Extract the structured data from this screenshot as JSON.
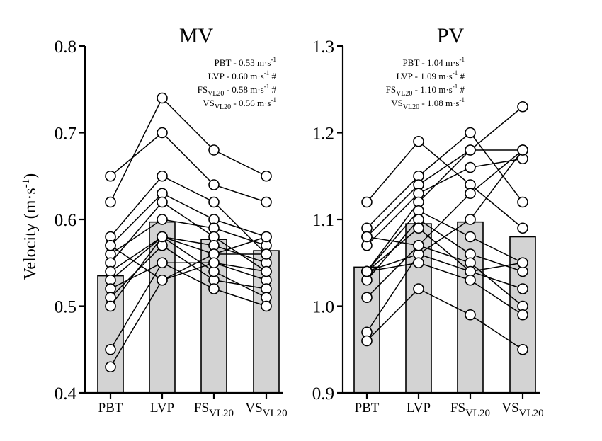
{
  "chart_data": [
    {
      "type": "bar",
      "title": "MV",
      "ylabel": "Velocity (m·s",
      "ylabel_sup": "-1",
      "ylabel_close": ")",
      "ylim": [
        0.4,
        0.8
      ],
      "yticks": [
        "0.4",
        "0.5",
        "0.6",
        "0.7",
        "0.8"
      ],
      "categories": [
        {
          "main": "PBT",
          "sub": ""
        },
        {
          "main": "LVP",
          "sub": ""
        },
        {
          "main": "FS",
          "sub": "VL20"
        },
        {
          "main": "VS",
          "sub": "VL20"
        }
      ],
      "means": [
        0.535,
        0.597,
        0.577,
        0.564
      ],
      "annotations": [
        {
          "main": "PBT",
          "sub": "",
          "text": " - 0.53 m·s",
          "sup": "-1",
          "mark": ""
        },
        {
          "main": "LVP",
          "sub": "",
          "text": " - 0.60 m·s",
          "sup": "-1",
          "mark": "#"
        },
        {
          "main": "FS",
          "sub": "VL20",
          "text": " - 0.58 m·s",
          "sup": "-1",
          "mark": "#"
        },
        {
          "main": "VS",
          "sub": "VL20",
          "text": " - 0.56 m·s",
          "sup": "-1",
          "mark": ""
        }
      ],
      "subjects": [
        [
          0.65,
          0.7,
          0.64,
          0.62
        ],
        [
          0.62,
          0.74,
          0.68,
          0.65
        ],
        [
          0.58,
          0.65,
          0.62,
          0.56
        ],
        [
          0.57,
          0.63,
          0.6,
          0.58
        ],
        [
          0.56,
          0.6,
          0.59,
          0.57
        ],
        [
          0.55,
          0.62,
          0.58,
          0.54
        ],
        [
          0.54,
          0.58,
          0.57,
          0.55
        ],
        [
          0.53,
          0.58,
          0.56,
          0.56
        ],
        [
          0.52,
          0.55,
          0.55,
          0.53
        ],
        [
          0.51,
          0.57,
          0.53,
          0.52
        ],
        [
          0.5,
          0.58,
          0.54,
          0.51
        ],
        [
          0.45,
          0.55,
          0.52,
          0.5
        ],
        [
          0.43,
          0.53,
          0.56,
          0.58
        ],
        [
          0.57,
          0.53,
          0.55,
          0.54
        ]
      ]
    },
    {
      "type": "bar",
      "title": "PV",
      "ylabel": "",
      "ylim": [
        0.9,
        1.3
      ],
      "yticks": [
        "0.9",
        "1.0",
        "1.1",
        "1.2",
        "1.3"
      ],
      "categories": [
        {
          "main": "PBT",
          "sub": ""
        },
        {
          "main": "LVP",
          "sub": ""
        },
        {
          "main": "FS",
          "sub": "VL20"
        },
        {
          "main": "VS",
          "sub": "VL20"
        }
      ],
      "means": [
        1.045,
        1.095,
        1.097,
        1.08
      ],
      "annotations": [
        {
          "main": "PBT",
          "sub": "",
          "text": " - 1.04 m·s",
          "sup": "-1",
          "mark": ""
        },
        {
          "main": "LVP",
          "sub": "",
          "text": " - 1.09 m·s",
          "sup": "-1",
          "mark": "#"
        },
        {
          "main": "FS",
          "sub": "VL20",
          "text": " - 1.10 m·s",
          "sup": "-1",
          "mark": "#"
        },
        {
          "main": "VS",
          "sub": "VL20",
          "text": " - 1.08 m·s",
          "sup": "-1",
          "mark": ""
        }
      ],
      "subjects": [
        [
          1.12,
          1.19,
          1.14,
          1.09
        ],
        [
          1.09,
          1.15,
          1.2,
          1.12
        ],
        [
          1.08,
          1.14,
          1.18,
          1.18
        ],
        [
          1.07,
          1.13,
          1.16,
          1.17
        ],
        [
          1.04,
          1.12,
          1.18,
          1.23
        ],
        [
          1.04,
          1.11,
          1.08,
          1.05
        ],
        [
          1.03,
          1.1,
          1.06,
          1.04
        ],
        [
          1.04,
          1.09,
          1.04,
          1.02
        ],
        [
          1.01,
          1.07,
          1.05,
          1.0
        ],
        [
          0.97,
          1.06,
          1.1,
          1.18
        ],
        [
          0.96,
          1.02,
          0.99,
          0.95
        ],
        [
          1.04,
          1.06,
          1.04,
          1.05
        ],
        [
          1.04,
          1.05,
          1.03,
          0.99
        ],
        [
          1.08,
          1.07,
          1.13,
          1.18
        ]
      ]
    }
  ]
}
